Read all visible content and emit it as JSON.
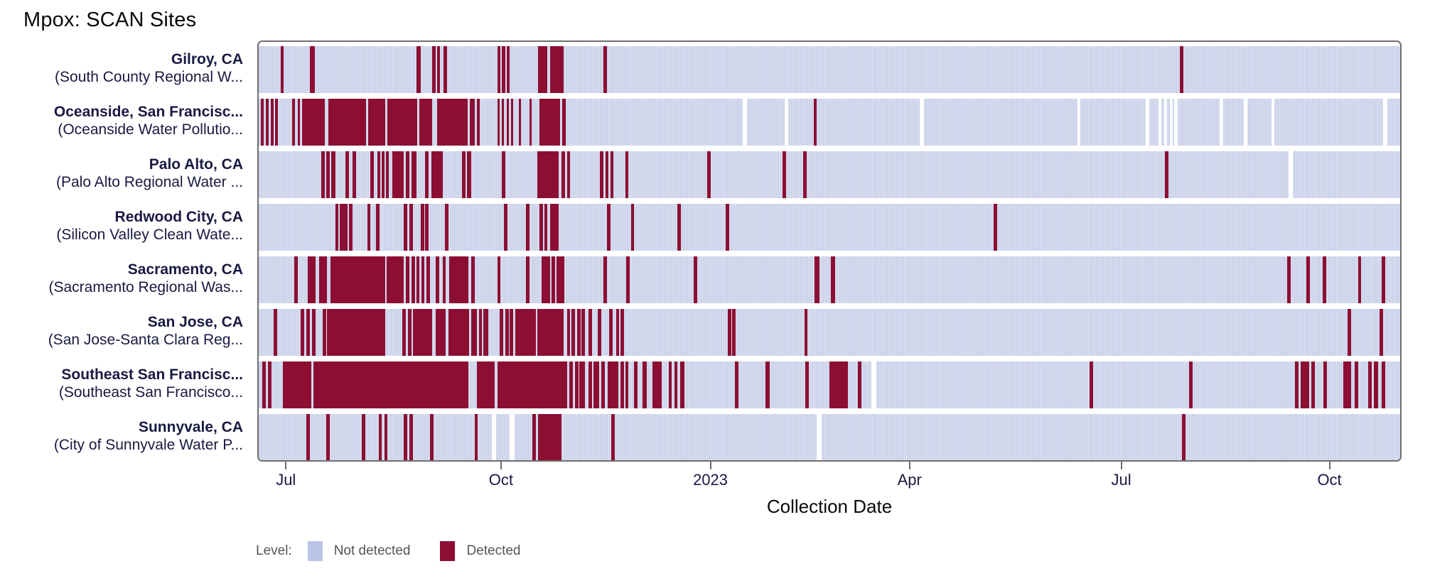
{
  "title": "Mpox: SCAN Sites",
  "chart_data": {
    "type": "heatmap",
    "title": "Mpox: SCAN Sites",
    "xlabel": "Collection Date",
    "grid": false,
    "legend_position": "bottom-left",
    "x_axis": {
      "ticks": [
        {
          "label": "Jul",
          "pct": 2.5
        },
        {
          "label": "Oct",
          "pct": 21.3
        },
        {
          "label": "2023",
          "pct": 39.6
        },
        {
          "label": "Apr",
          "pct": 57.0
        },
        {
          "label": "Jul",
          "pct": 75.5
        },
        {
          "label": "Oct",
          "pct": 93.7
        }
      ]
    },
    "legend": {
      "label": "Level:",
      "items": [
        {
          "name": "Not detected",
          "color": "#b9c4e7"
        },
        {
          "name": "Detected",
          "color": "#8c0f33"
        }
      ]
    },
    "colors": {
      "not_detected_band": "#ccd3ea",
      "band_stripe": "#dde2f1",
      "detected": "#8c0f33",
      "missing": "#ffffff",
      "plot_border": "#6f6f6f",
      "label_text": "#191942"
    },
    "rows": [
      {
        "city": "Gilroy, CA",
        "plant": "(South County Regional W...",
        "detected": [
          [
            1.9,
            2.2
          ],
          [
            4.5,
            4.9
          ],
          [
            13.8,
            14.2
          ],
          [
            15.2,
            15.5
          ],
          [
            15.6,
            15.9
          ],
          [
            16.2,
            16.5
          ],
          [
            20.9,
            21.2
          ],
          [
            21.3,
            21.6
          ],
          [
            21.7,
            22.0
          ],
          [
            24.5,
            25.3
          ],
          [
            25.5,
            26.7
          ],
          [
            30.2,
            30.5
          ],
          [
            80.7,
            81.0
          ]
        ],
        "missing": []
      },
      {
        "city": "Oceanside, San Francisc...",
        "plant": "(Oceanside Water Pollutio...",
        "detected": [
          [
            0.2,
            0.45
          ],
          [
            0.6,
            0.85
          ],
          [
            1.05,
            1.3
          ],
          [
            1.45,
            1.7
          ],
          [
            2.9,
            3.2
          ],
          [
            3.4,
            3.6
          ],
          [
            3.8,
            5.8
          ],
          [
            6.1,
            9.4
          ],
          [
            9.6,
            11.1
          ],
          [
            11.3,
            13.9
          ],
          [
            14.1,
            15.2
          ],
          [
            15.6,
            18.3
          ],
          [
            18.5,
            18.9
          ],
          [
            19.1,
            19.35
          ],
          [
            20.9,
            21.1
          ],
          [
            21.3,
            21.5
          ],
          [
            21.7,
            21.9
          ],
          [
            22.1,
            22.3
          ],
          [
            22.8,
            23.0
          ],
          [
            23.7,
            23.9
          ],
          [
            24.6,
            26.4
          ],
          [
            26.6,
            26.9
          ],
          [
            48.6,
            48.9
          ]
        ],
        "missing": [
          [
            42.4,
            42.8
          ],
          [
            46.1,
            46.4
          ],
          [
            57.9,
            58.3
          ],
          [
            71.7,
            72.0
          ],
          [
            77.7,
            78.0
          ],
          [
            78.8,
            79.1
          ],
          [
            79.3,
            79.6
          ],
          [
            79.8,
            80.1
          ],
          [
            80.2,
            80.5
          ],
          [
            84.2,
            84.5
          ],
          [
            86.3,
            86.6
          ],
          [
            88.7,
            89.0
          ],
          [
            98.5,
            98.9
          ]
        ]
      },
      {
        "city": "Palo Alto, CA",
        "plant": "(Palo Alto Regional Water ...",
        "detected": [
          [
            5.5,
            5.8
          ],
          [
            5.9,
            6.2
          ],
          [
            6.35,
            6.7
          ],
          [
            7.6,
            7.9
          ],
          [
            8.2,
            8.5
          ],
          [
            9.8,
            10.1
          ],
          [
            10.4,
            10.65
          ],
          [
            10.75,
            11.0
          ],
          [
            11.15,
            11.4
          ],
          [
            11.7,
            12.7
          ],
          [
            12.9,
            13.2
          ],
          [
            13.4,
            13.8
          ],
          [
            14.6,
            14.9
          ],
          [
            15.1,
            16.1
          ],
          [
            17.8,
            18.1
          ],
          [
            18.25,
            18.6
          ],
          [
            21.3,
            21.6
          ],
          [
            24.4,
            26.3
          ],
          [
            26.55,
            26.85
          ],
          [
            27.0,
            27.3
          ],
          [
            29.9,
            30.2
          ],
          [
            30.4,
            30.65
          ],
          [
            30.8,
            31.1
          ],
          [
            32.1,
            32.4
          ],
          [
            39.3,
            39.6
          ],
          [
            45.9,
            46.2
          ],
          [
            47.7,
            48.0
          ],
          [
            79.4,
            79.7
          ]
        ],
        "missing": [
          [
            90.2,
            90.6
          ]
        ]
      },
      {
        "city": "Redwood City, CA",
        "plant": "(Silicon Valley Clean Wate...",
        "detected": [
          [
            6.7,
            7.0
          ],
          [
            7.1,
            7.8
          ],
          [
            7.9,
            8.2
          ],
          [
            9.5,
            9.8
          ],
          [
            10.3,
            10.6
          ],
          [
            12.7,
            13.0
          ],
          [
            13.2,
            13.5
          ],
          [
            14.2,
            14.5
          ],
          [
            14.6,
            14.9
          ],
          [
            16.3,
            16.6
          ],
          [
            21.5,
            21.8
          ],
          [
            23.4,
            23.7
          ],
          [
            24.6,
            24.9
          ],
          [
            25.0,
            25.3
          ],
          [
            25.5,
            26.3
          ],
          [
            30.5,
            30.8
          ],
          [
            32.6,
            32.9
          ],
          [
            36.7,
            37.0
          ],
          [
            40.9,
            41.2
          ],
          [
            64.4,
            64.7
          ]
        ],
        "missing": []
      },
      {
        "city": "Sacramento, CA",
        "plant": "(Sacramento Regional Was...",
        "detected": [
          [
            3.1,
            3.4
          ],
          [
            4.3,
            5.0
          ],
          [
            5.3,
            6.0
          ],
          [
            6.3,
            11.1
          ],
          [
            11.2,
            12.7
          ],
          [
            12.9,
            13.2
          ],
          [
            13.4,
            13.7
          ],
          [
            13.85,
            14.1
          ],
          [
            14.25,
            14.5
          ],
          [
            14.7,
            15.0
          ],
          [
            15.5,
            15.8
          ],
          [
            16.1,
            16.4
          ],
          [
            16.7,
            18.4
          ],
          [
            18.6,
            18.9
          ],
          [
            20.9,
            21.2
          ],
          [
            23.4,
            23.7
          ],
          [
            24.8,
            25.5
          ],
          [
            25.65,
            25.95
          ],
          [
            26.1,
            26.8
          ],
          [
            30.2,
            30.5
          ],
          [
            32.2,
            32.5
          ],
          [
            38.1,
            38.4
          ],
          [
            48.7,
            49.1
          ],
          [
            50.1,
            50.5
          ],
          [
            90.1,
            90.4
          ],
          [
            91.8,
            92.1
          ],
          [
            93.2,
            93.5
          ],
          [
            96.3,
            96.6
          ],
          [
            98.4,
            98.7
          ]
        ],
        "missing": []
      },
      {
        "city": "San Jose, CA",
        "plant": "(San Jose-Santa Clara Reg...",
        "detected": [
          [
            1.3,
            1.6
          ],
          [
            3.7,
            4.0
          ],
          [
            4.2,
            4.5
          ],
          [
            4.7,
            5.0
          ],
          [
            5.6,
            5.9
          ],
          [
            6.0,
            11.1
          ],
          [
            12.6,
            12.9
          ],
          [
            13.1,
            13.4
          ],
          [
            13.5,
            15.2
          ],
          [
            15.5,
            16.4
          ],
          [
            16.6,
            18.4
          ],
          [
            18.6,
            19.1
          ],
          [
            19.3,
            19.55
          ],
          [
            19.7,
            20.1
          ],
          [
            21.1,
            21.4
          ],
          [
            21.6,
            21.9
          ],
          [
            22.0,
            22.3
          ],
          [
            22.5,
            24.3
          ],
          [
            24.4,
            26.7
          ],
          [
            27.0,
            27.3
          ],
          [
            27.4,
            27.7
          ],
          [
            27.9,
            28.2
          ],
          [
            28.3,
            28.6
          ],
          [
            28.9,
            29.2
          ],
          [
            29.7,
            30.0
          ],
          [
            30.7,
            31.0
          ],
          [
            31.3,
            31.6
          ],
          [
            31.7,
            32.0
          ],
          [
            41.1,
            41.4
          ],
          [
            41.5,
            41.8
          ],
          [
            47.8,
            48.1
          ],
          [
            95.4,
            95.7
          ],
          [
            98.2,
            98.5
          ]
        ],
        "missing": []
      },
      {
        "city": "Southeast San Francisc...",
        "plant": "(Southeast San Francisco...",
        "detected": [
          [
            0.3,
            0.6
          ],
          [
            0.8,
            1.1
          ],
          [
            2.1,
            4.6
          ],
          [
            4.8,
            18.4
          ],
          [
            19.1,
            20.7
          ],
          [
            20.9,
            27.0
          ],
          [
            27.2,
            27.55
          ],
          [
            27.7,
            28.0
          ],
          [
            28.1,
            28.6
          ],
          [
            28.9,
            29.2
          ],
          [
            29.35,
            29.8
          ],
          [
            30.0,
            30.3
          ],
          [
            30.6,
            31.5
          ],
          [
            31.7,
            32.0
          ],
          [
            32.1,
            32.4
          ],
          [
            32.9,
            33.2
          ],
          [
            33.6,
            34.0
          ],
          [
            34.5,
            35.3
          ],
          [
            35.9,
            36.2
          ],
          [
            36.4,
            36.7
          ],
          [
            36.9,
            37.3
          ],
          [
            41.7,
            42.0
          ],
          [
            44.4,
            44.75
          ],
          [
            47.9,
            48.2
          ],
          [
            50.0,
            51.6
          ],
          [
            52.5,
            52.8
          ],
          [
            72.8,
            73.1
          ],
          [
            81.5,
            81.8
          ],
          [
            90.8,
            91.1
          ],
          [
            91.3,
            92.0
          ],
          [
            92.2,
            92.5
          ],
          [
            93.3,
            93.6
          ],
          [
            95.0,
            95.7
          ],
          [
            96.0,
            96.3
          ],
          [
            97.2,
            97.5
          ],
          [
            97.7,
            98.1
          ],
          [
            98.4,
            98.7
          ]
        ],
        "missing": [
          [
            53.7,
            54.1
          ]
        ]
      },
      {
        "city": "Sunnyvale, CA",
        "plant": "(City of Sunnyvale Water P...",
        "detected": [
          [
            4.2,
            4.5
          ],
          [
            5.9,
            6.2
          ],
          [
            9.0,
            9.35
          ],
          [
            10.5,
            10.8
          ],
          [
            11.0,
            11.3
          ],
          [
            12.7,
            13.0
          ],
          [
            13.2,
            13.5
          ],
          [
            15.0,
            15.3
          ],
          [
            18.9,
            19.2
          ],
          [
            24.0,
            24.3
          ],
          [
            24.5,
            26.5
          ],
          [
            30.9,
            31.2
          ],
          [
            80.9,
            81.2
          ]
        ],
        "missing": [
          [
            20.4,
            20.8
          ],
          [
            22.0,
            22.4
          ],
          [
            48.9,
            49.3
          ]
        ]
      }
    ]
  }
}
